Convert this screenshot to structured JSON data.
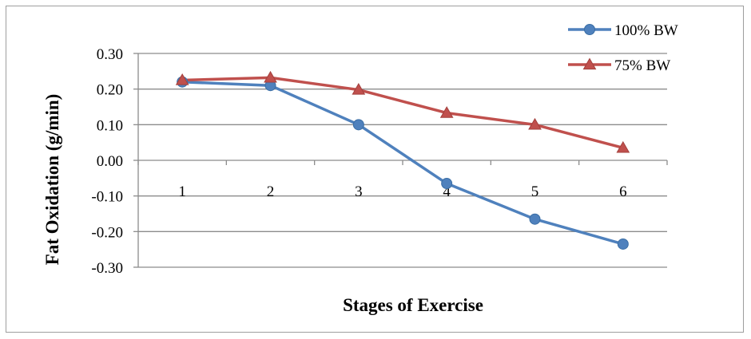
{
  "chart_data": {
    "type": "line",
    "title": "",
    "xlabel": "Stages of Exercise",
    "ylabel": "Fat Oxidation (g/min)",
    "categories": [
      "1",
      "2",
      "3",
      "4",
      "5",
      "6"
    ],
    "ylim": [
      -0.3,
      0.3
    ],
    "yticks": [
      "0.30",
      "0.20",
      "0.10",
      "0.00",
      "-0.10",
      "-0.20",
      "-0.30"
    ],
    "grid": true,
    "legend_position": "top-right",
    "series": [
      {
        "name": "100% BW",
        "values": [
          0.22,
          0.21,
          0.1,
          -0.065,
          -0.165,
          -0.235
        ],
        "color": "#4f81bd",
        "marker": "circle"
      },
      {
        "name": "75% BW",
        "values": [
          0.225,
          0.232,
          0.198,
          0.133,
          0.1,
          0.035
        ],
        "color": "#c0504d",
        "marker": "triangle"
      }
    ]
  }
}
